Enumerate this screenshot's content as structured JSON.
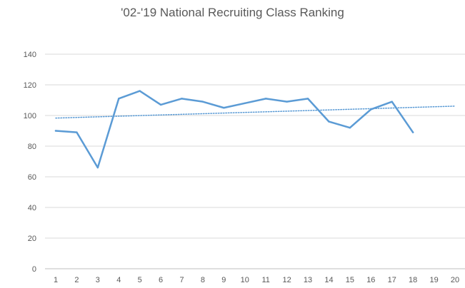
{
  "chart_data": {
    "type": "line",
    "title": "'02-'19 National Recruiting Class Ranking",
    "xlabel": "",
    "ylabel": "",
    "x": [
      1,
      2,
      3,
      4,
      5,
      6,
      7,
      8,
      9,
      10,
      11,
      12,
      13,
      14,
      15,
      16,
      17,
      18
    ],
    "x_ticks": [
      "1",
      "2",
      "3",
      "4",
      "5",
      "6",
      "7",
      "8",
      "9",
      "10",
      "11",
      "12",
      "13",
      "14",
      "15",
      "16",
      "17",
      "18",
      "19",
      "20"
    ],
    "y_ticks": [
      "0",
      "20",
      "40",
      "60",
      "80",
      "100",
      "120",
      "140"
    ],
    "ylim": [
      0,
      140
    ],
    "xlim": [
      1,
      20
    ],
    "grid": true,
    "legend": "none",
    "series": [
      {
        "values": [
          90,
          89,
          66,
          111,
          116,
          107,
          111,
          109,
          105,
          108,
          111,
          109,
          111,
          96,
          92,
          104,
          109,
          89
        ],
        "color": "#5b9bd5",
        "style": "solid"
      }
    ],
    "trendline": {
      "type": "linear",
      "x_range": [
        1,
        20
      ],
      "start_value": 98.3,
      "end_value": 106.1,
      "color": "#5b9bd5",
      "style": "dotted"
    }
  }
}
